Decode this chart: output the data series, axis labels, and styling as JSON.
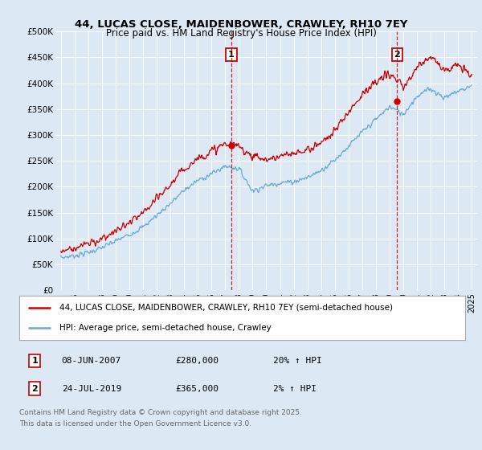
{
  "title": "44, LUCAS CLOSE, MAIDENBOWER, CRAWLEY, RH10 7EY",
  "subtitle": "Price paid vs. HM Land Registry's House Price Index (HPI)",
  "background_color": "#dce9f5",
  "plot_bg_color": "#dce9f5",
  "hpi_color": "#6baad4",
  "price_color": "#cc0000",
  "vline_color": "#cc0000",
  "annotation_box_color": "#cc0000",
  "ylabel_ticks": [
    "£0",
    "£50K",
    "£100K",
    "£150K",
    "£200K",
    "£250K",
    "£300K",
    "£350K",
    "£400K",
    "£450K",
    "£500K"
  ],
  "ylim": [
    0,
    500000
  ],
  "xlim_start": 1994.6,
  "xlim_end": 2025.4,
  "sale1_date": 2007.44,
  "sale1_price": 280000,
  "sale2_date": 2019.56,
  "sale2_price": 365000,
  "legend_line1": "44, LUCAS CLOSE, MAIDENBOWER, CRAWLEY, RH10 7EY (semi-detached house)",
  "legend_line2": "HPI: Average price, semi-detached house, Crawley",
  "footnote": "Contains HM Land Registry data © Crown copyright and database right 2025.\nThis data is licensed under the Open Government Licence v3.0."
}
